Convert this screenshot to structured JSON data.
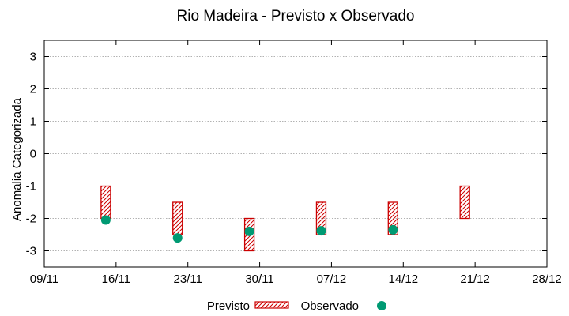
{
  "chart_data": {
    "type": "floating-bar-scatter",
    "title": "Rio Madeira - Previsto x Observado",
    "xlabel": "",
    "ylabel": "Anomalia Categorizada",
    "ylim": [
      -3.5,
      3.5
    ],
    "yticks": [
      3,
      2,
      1,
      0,
      -1,
      -2,
      -3
    ],
    "ytick_labels": [
      "3",
      "2",
      "1",
      "0",
      "-1",
      "-2",
      "-3"
    ],
    "xlim_days": [
      0,
      49
    ],
    "xticks_days": [
      0,
      7,
      14,
      21,
      28,
      35,
      42,
      49
    ],
    "xtick_labels": [
      "09/11",
      "16/11",
      "23/11",
      "30/11",
      "07/12",
      "14/12",
      "21/12",
      "28/12"
    ],
    "grid": true,
    "legend": {
      "position": "bottom-center",
      "entries": [
        {
          "label": "Previsto",
          "style": "hatched-red-box"
        },
        {
          "label": "Observado",
          "style": "teal-circle"
        }
      ]
    },
    "colors": {
      "previsto": "#cc0000",
      "observado": "#009a73",
      "grid": "#999999"
    },
    "series": [
      {
        "name": "Previsto",
        "kind": "range",
        "points": [
          {
            "x_day": 6,
            "low": -2.0,
            "high": -1.0
          },
          {
            "x_day": 13,
            "low": -2.5,
            "high": -1.5
          },
          {
            "x_day": 20,
            "low": -3.0,
            "high": -2.0
          },
          {
            "x_day": 27,
            "low": -2.5,
            "high": -1.5
          },
          {
            "x_day": 34,
            "low": -2.5,
            "high": -1.5
          },
          {
            "x_day": 41,
            "low": -2.0,
            "high": -1.0
          }
        ]
      },
      {
        "name": "Observado",
        "kind": "point",
        "points": [
          {
            "x_day": 6,
            "y": -2.05
          },
          {
            "x_day": 13,
            "y": -2.6
          },
          {
            "x_day": 20,
            "y": -2.4
          },
          {
            "x_day": 27,
            "y": -2.38
          },
          {
            "x_day": 34,
            "y": -2.35
          }
        ]
      }
    ]
  }
}
